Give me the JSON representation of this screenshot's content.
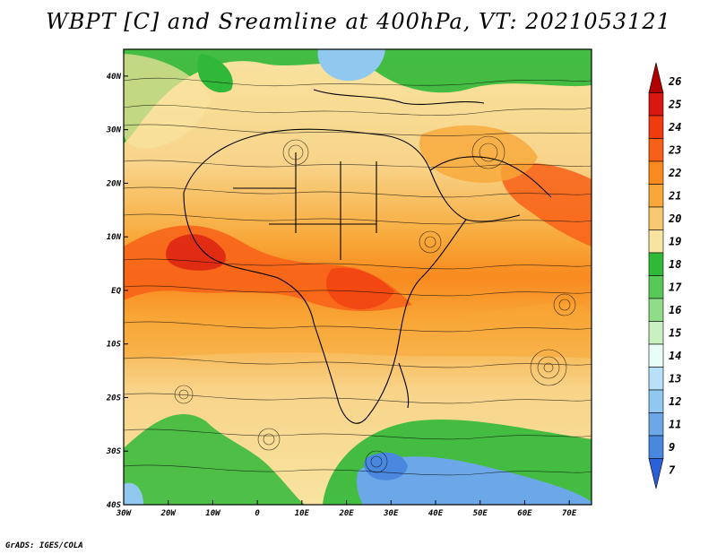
{
  "title": "WBPT [C] and Sreamline at 400hPa, VT: 2021053121",
  "footer": "GrADS: IGES/COLA",
  "map": {
    "lon_range": [
      -30,
      75
    ],
    "lat_range": [
      -40,
      45
    ],
    "lon_ticks": [
      {
        "value": -30,
        "label": "30W"
      },
      {
        "value": -20,
        "label": "20W"
      },
      {
        "value": -10,
        "label": "10W"
      },
      {
        "value": 0,
        "label": "0"
      },
      {
        "value": 10,
        "label": "10E"
      },
      {
        "value": 20,
        "label": "20E"
      },
      {
        "value": 30,
        "label": "30E"
      },
      {
        "value": 40,
        "label": "40E"
      },
      {
        "value": 50,
        "label": "50E"
      },
      {
        "value": 60,
        "label": "60E"
      },
      {
        "value": 70,
        "label": "70E"
      }
    ],
    "lat_ticks": [
      {
        "value": 40,
        "label": "40N"
      },
      {
        "value": 30,
        "label": "30N"
      },
      {
        "value": 20,
        "label": "20N"
      },
      {
        "value": 10,
        "label": "10N"
      },
      {
        "value": 0,
        "label": "EQ"
      },
      {
        "value": -10,
        "label": "10S"
      },
      {
        "value": -20,
        "label": "20S"
      },
      {
        "value": -30,
        "label": "30S"
      },
      {
        "value": -40,
        "label": "40S"
      }
    ]
  },
  "colorbar": {
    "levels": [
      "26",
      "25",
      "24",
      "23",
      "22",
      "21",
      "20",
      "19",
      "18",
      "17",
      "16",
      "15",
      "14",
      "13",
      "12",
      "11",
      "9",
      "7"
    ],
    "colors": [
      "#b00000",
      "#d81810",
      "#f03a10",
      "#f86018",
      "#f88a20",
      "#f8a838",
      "#f8c870",
      "#f8e4a0",
      "#30b838",
      "#58c858",
      "#90dc88",
      "#c8f0c0",
      "#e8fcf8",
      "#b8e0f8",
      "#90c8f0",
      "#6ca8e8",
      "#4a88e0",
      "#2a60d8"
    ]
  },
  "colors": {
    "background": "#ffffff",
    "border": "#000000"
  }
}
